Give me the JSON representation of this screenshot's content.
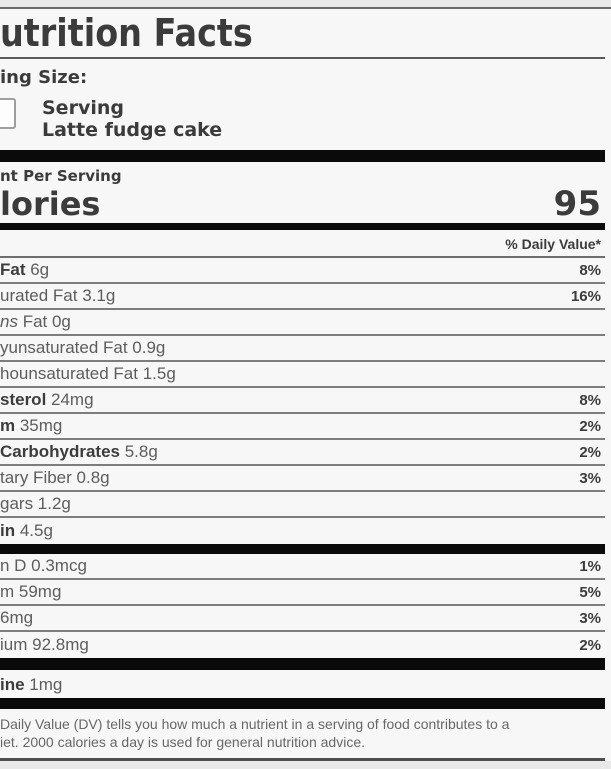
{
  "label": {
    "title": "utrition Facts",
    "serving": {
      "size_label": "ing Size:",
      "unit": "Serving",
      "item_name": "Latte fudge cake"
    },
    "calories": {
      "amount_per": "nt Per Serving",
      "label": "lories",
      "value": "95"
    },
    "daily_value_header": "% Daily Value*",
    "nutrient_rows": [
      {
        "bold": "Fat",
        "rest": " 6g",
        "dv": "8%"
      },
      {
        "bold": "",
        "rest": "urated Fat 3.1g",
        "dv": "16%"
      },
      {
        "italic": "ns",
        "rest": " Fat 0g",
        "dv": ""
      },
      {
        "bold": "",
        "rest": "yunsaturated Fat 0.9g",
        "dv": ""
      },
      {
        "bold": "",
        "rest": "hounsaturated Fat 1.5g",
        "dv": ""
      },
      {
        "bold": "sterol",
        "rest": " 24mg",
        "dv": "8%"
      },
      {
        "bold": "m",
        "rest": " 35mg",
        "dv": "2%"
      },
      {
        "bold": "Carbohydrates",
        "rest": " 5.8g",
        "dv": "2%"
      },
      {
        "bold": "",
        "rest": "tary Fiber 0.8g",
        "dv": "3%"
      },
      {
        "bold": "",
        "rest": "gars 1.2g",
        "dv": ""
      },
      {
        "bold": "in",
        "rest": " 4.5g",
        "dv": ""
      }
    ],
    "micronutrient_rows": [
      {
        "rest": "n D 0.3mcg",
        "dv": "1%"
      },
      {
        "rest": "m 59mg",
        "dv": "5%"
      },
      {
        "rest": "6mg",
        "dv": "3%"
      },
      {
        "rest": "ium 92.8mg",
        "dv": "2%"
      }
    ],
    "extra_row": {
      "bold": "ine",
      "rest": " 1mg"
    },
    "footnote": {
      "line1": "Daily Value (DV) tells you how much a nutrient in a serving of food contributes to a",
      "line2": "iet. 2000 calories a day is used for general nutrition advice."
    }
  },
  "colors": {
    "divider_bar": "#0a0a0a",
    "text_strong": "#3c3c3c",
    "text_muted": "#5d5d5d",
    "label_background": "#f7f7f7",
    "page_background": "#e9e9e9",
    "rule_gray": "#7d7d7d"
  }
}
